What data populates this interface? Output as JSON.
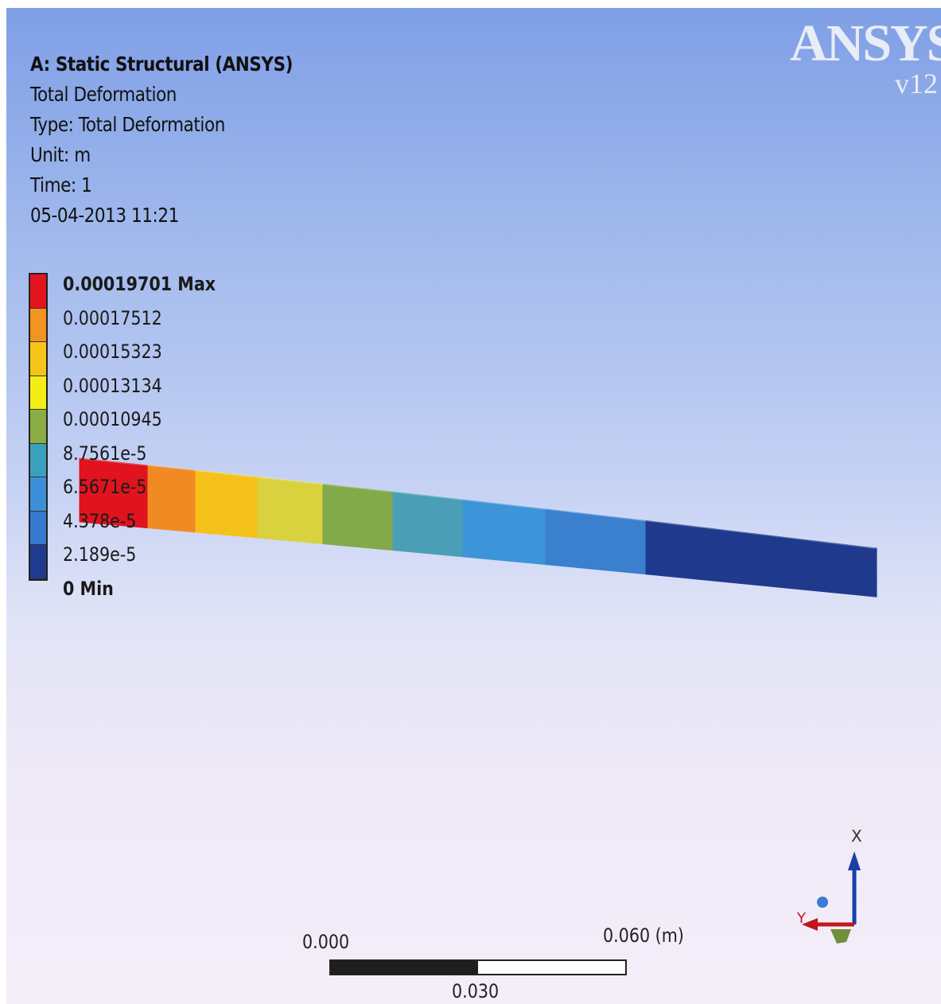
{
  "header": {
    "title": "A: Static Structural (ANSYS)",
    "result_name": "Total Deformation",
    "type_line": "Type: Total Deformation",
    "unit_line": "Unit: m",
    "time_line": "Time: 1",
    "datetime": "05-04-2013 11:21"
  },
  "logo": {
    "brand": "ANSYS",
    "version": "v12"
  },
  "legend": {
    "max_label": "0.00019701 Max",
    "min_label": "0 Min",
    "levels": [
      {
        "label": "0.00019701 Max",
        "color": "#e3141e"
      },
      {
        "label": "0.00017512",
        "color": "#f39322"
      },
      {
        "label": "0.00015323",
        "color": "#f7c51a"
      },
      {
        "label": "0.00013134",
        "color": "#f5ee16"
      },
      {
        "label": "0.00010945",
        "color": "#8aae45"
      },
      {
        "label": "8.7561e-5",
        "color": "#3aa1bd"
      },
      {
        "label": "6.5671e-5",
        "color": "#3d8fd9"
      },
      {
        "label": "4.378e-5",
        "color": "#3679d0"
      },
      {
        "label": "2.189e-5",
        "color": "#1f3b8f"
      },
      {
        "label": "0 Min",
        "color": "#1f3b8f"
      }
    ]
  },
  "beam": {
    "bands": [
      {
        "color": "#e0131f"
      },
      {
        "color": "#f08a22"
      },
      {
        "color": "#f5c21c"
      },
      {
        "color": "#d9d23e"
      },
      {
        "color": "#82a94a"
      },
      {
        "color": "#4a9fb6"
      },
      {
        "color": "#3e94d8"
      },
      {
        "color": "#3a80cf"
      },
      {
        "color": "#1f3a8c"
      }
    ]
  },
  "scale": {
    "left_label": "0.000",
    "mid_label": "0.030",
    "right_label": "0.060 (m)"
  },
  "triad": {
    "x_label": "X",
    "y_label": "Y"
  }
}
